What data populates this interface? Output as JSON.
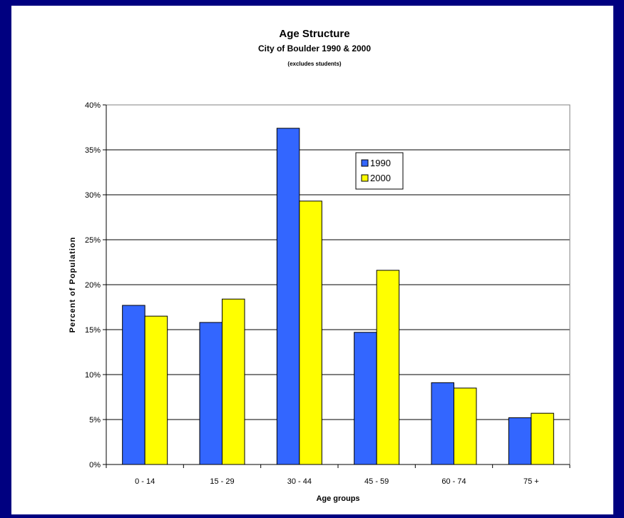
{
  "chart_data": {
    "type": "bar",
    "title": "Age Structure",
    "subtitle": "City of Boulder 1990 & 2000",
    "note": "(excludes students)",
    "xlabel": "Age groups",
    "ylabel": "Percent of Population",
    "categories": [
      "0 - 14",
      "15 - 29",
      "30 - 44",
      "45 - 59",
      "60 - 74",
      "75 +"
    ],
    "series": [
      {
        "name": "1990",
        "color": "#3366FF",
        "values": [
          17.7,
          15.8,
          37.4,
          14.7,
          9.1,
          5.2
        ]
      },
      {
        "name": "2000",
        "color": "#FFFF00",
        "values": [
          16.5,
          18.4,
          29.3,
          21.6,
          8.5,
          5.7
        ]
      }
    ],
    "ylim": [
      0,
      40
    ],
    "yticks": [
      0,
      5,
      10,
      15,
      20,
      25,
      30,
      35,
      40
    ],
    "ytick_labels": [
      "0%",
      "5%",
      "10%",
      "15%",
      "20%",
      "25%",
      "30%",
      "35%",
      "40%"
    ],
    "grid": true,
    "legend_position": "top-center"
  }
}
